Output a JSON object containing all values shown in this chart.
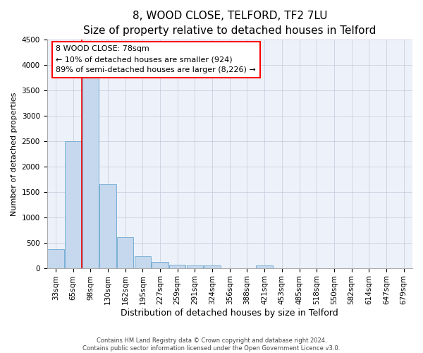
{
  "title": "8, WOOD CLOSE, TELFORD, TF2 7LU",
  "subtitle": "Size of property relative to detached houses in Telford",
  "xlabel": "Distribution of detached houses by size in Telford",
  "ylabel": "Number of detached properties",
  "categories": [
    "33sqm",
    "65sqm",
    "98sqm",
    "130sqm",
    "162sqm",
    "195sqm",
    "227sqm",
    "259sqm",
    "291sqm",
    "324sqm",
    "356sqm",
    "388sqm",
    "421sqm",
    "453sqm",
    "485sqm",
    "518sqm",
    "550sqm",
    "582sqm",
    "614sqm",
    "647sqm",
    "679sqm"
  ],
  "values": [
    370,
    2500,
    3750,
    1650,
    600,
    230,
    115,
    70,
    50,
    45,
    0,
    0,
    55,
    0,
    0,
    0,
    0,
    0,
    0,
    0,
    0
  ],
  "bar_color": "#c5d8ee",
  "bar_edge_color": "#7aafd4",
  "vline_x": 1.5,
  "vline_color": "red",
  "annotation_text": "8 WOOD CLOSE: 78sqm\n← 10% of detached houses are smaller (924)\n89% of semi-detached houses are larger (8,226) →",
  "ylim": [
    0,
    4500
  ],
  "yticks": [
    0,
    500,
    1000,
    1500,
    2000,
    2500,
    3000,
    3500,
    4000,
    4500
  ],
  "bg_color": "#edf2fa",
  "grid_color": "#c8d0e0",
  "footer": "Contains HM Land Registry data © Crown copyright and database right 2024.\nContains public sector information licensed under the Open Government Licence v3.0.",
  "title_fontsize": 11,
  "xlabel_fontsize": 9,
  "ylabel_fontsize": 8,
  "tick_fontsize": 7.5
}
